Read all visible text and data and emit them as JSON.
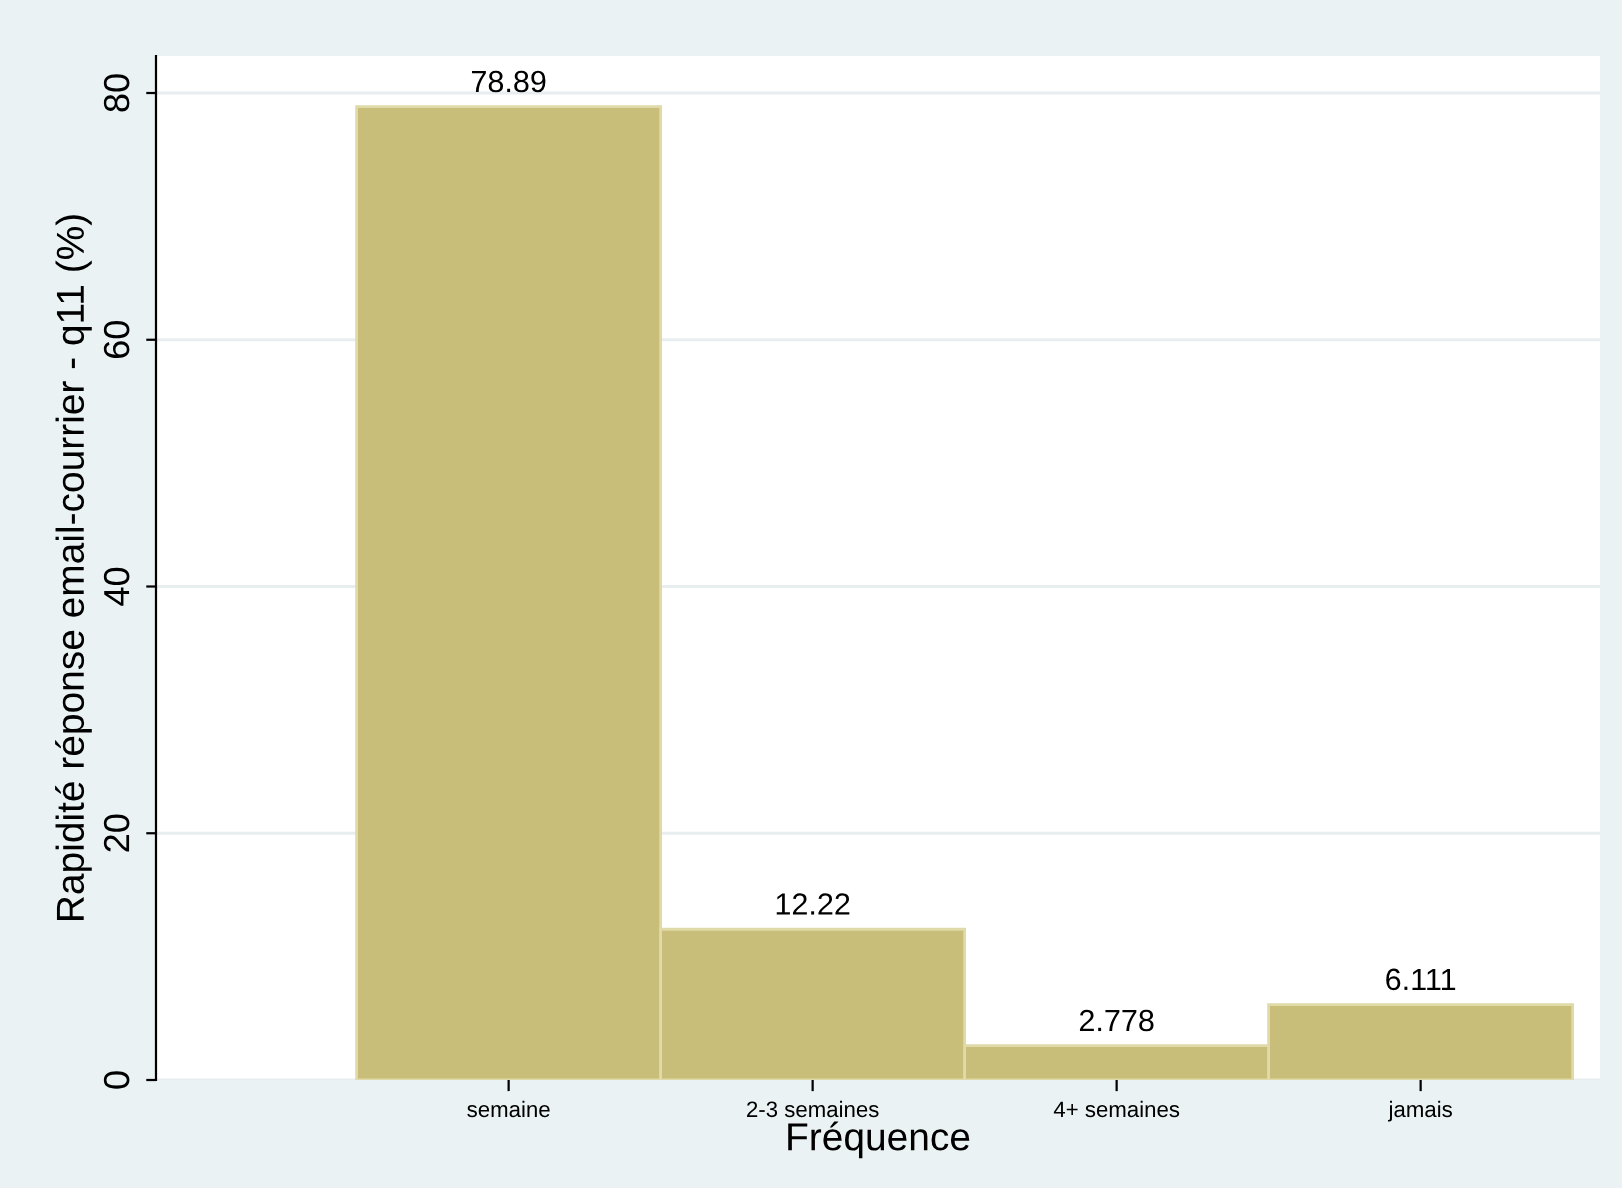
{
  "chart_data": {
    "type": "bar",
    "xlabel": "Fréquence",
    "ylabel": "Rapidité réponse email-courrier - q11 (%)",
    "categories": [
      "semaine",
      "2-3 semaines",
      "4+ semaines",
      "jamais"
    ],
    "values": [
      78.89,
      12.22,
      2.778,
      6.111
    ],
    "color": "#c9bd7a",
    "ylim": [
      0,
      83
    ],
    "yticks": [
      0,
      20,
      40,
      60,
      80
    ],
    "grid": "y",
    "data_labels": true
  }
}
